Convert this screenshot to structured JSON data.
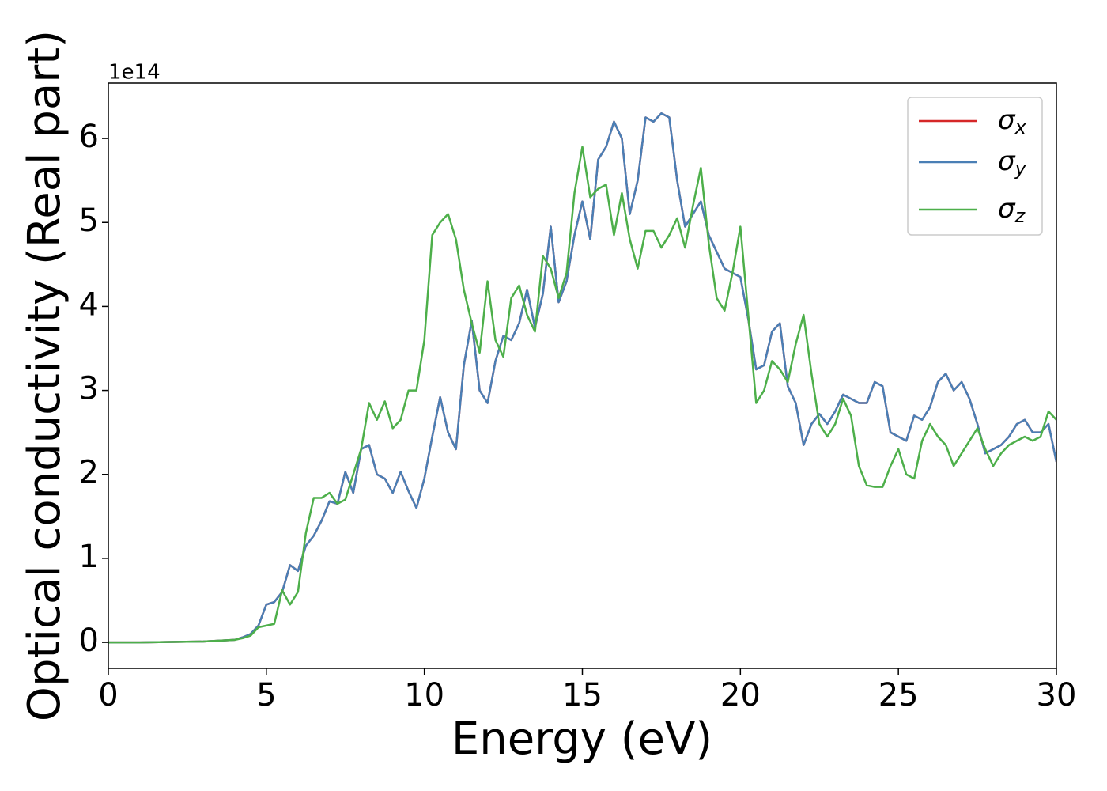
{
  "chart_data": {
    "type": "line",
    "xlabel": "Energy (eV)",
    "ylabel": "Optical conductivity (Real part)",
    "y_offset_text": "1e14",
    "xlim": [
      0,
      30
    ],
    "ylim": [
      -0.31,
      6.66
    ],
    "xticks": [
      0,
      5,
      10,
      15,
      20,
      25,
      30
    ],
    "yticks": [
      0,
      1,
      2,
      3,
      4,
      5,
      6
    ],
    "legend": "upper right",
    "x": [
      0,
      1,
      2,
      3,
      4,
      4.25,
      4.5,
      4.75,
      5,
      5.25,
      5.5,
      5.75,
      6,
      6.25,
      6.5,
      6.75,
      7,
      7.25,
      7.5,
      7.75,
      8,
      8.25,
      8.5,
      8.75,
      9,
      9.25,
      9.5,
      9.75,
      10,
      10.25,
      10.5,
      10.75,
      11,
      11.25,
      11.5,
      11.75,
      12,
      12.25,
      12.5,
      12.75,
      13,
      13.25,
      13.5,
      13.75,
      14,
      14.25,
      14.5,
      14.75,
      15,
      15.25,
      15.5,
      15.75,
      16,
      16.25,
      16.5,
      16.75,
      17,
      17.25,
      17.5,
      17.75,
      18,
      18.25,
      18.5,
      18.75,
      19,
      19.25,
      19.5,
      19.75,
      20,
      20.25,
      20.5,
      20.75,
      21,
      21.25,
      21.5,
      21.75,
      22,
      22.25,
      22.5,
      22.75,
      23,
      23.25,
      23.5,
      23.75,
      24,
      24.25,
      24.5,
      24.75,
      25,
      25.25,
      25.5,
      25.75,
      26,
      26.25,
      26.5,
      26.75,
      27,
      27.25,
      27.5,
      27.75,
      28,
      28.25,
      28.5,
      28.75,
      29,
      29.25,
      29.5,
      29.75,
      30
    ],
    "series": [
      {
        "name": "σx",
        "color": "#d62728",
        "values": [
          0,
          0,
          0.005,
          0.01,
          0.03,
          0.06,
          0.1,
          0.2,
          0.45,
          0.48,
          0.6,
          0.92,
          0.85,
          1.15,
          1.27,
          1.45,
          1.68,
          1.65,
          2.03,
          1.78,
          2.3,
          2.35,
          2.0,
          1.95,
          1.78,
          2.03,
          1.8,
          1.6,
          1.95,
          2.45,
          2.92,
          2.5,
          2.3,
          3.3,
          3.83,
          3.0,
          2.85,
          3.35,
          3.65,
          3.6,
          3.8,
          4.2,
          3.75,
          4.15,
          4.95,
          4.05,
          4.3,
          4.85,
          5.25,
          4.8,
          5.75,
          5.9,
          6.2,
          6.0,
          5.1,
          5.5,
          6.25,
          6.2,
          6.3,
          6.25,
          5.5,
          4.95,
          5.1,
          5.25,
          4.85,
          4.65,
          4.45,
          4.4,
          4.35,
          3.85,
          3.25,
          3.3,
          3.7,
          3.8,
          3.05,
          2.85,
          2.35,
          2.6,
          2.72,
          2.6,
          2.75,
          2.95,
          2.9,
          2.85,
          2.85,
          3.1,
          3.05,
          2.5,
          2.45,
          2.4,
          2.7,
          2.65,
          2.8,
          3.1,
          3.2,
          3.0,
          3.1,
          2.9,
          2.6,
          2.25,
          2.3,
          2.35,
          2.45,
          2.6,
          2.65,
          2.5,
          2.5,
          2.6,
          2.15
        ]
      },
      {
        "name": "σy",
        "color": "#4a7fb5",
        "values": [
          0,
          0,
          0.005,
          0.01,
          0.03,
          0.06,
          0.1,
          0.2,
          0.45,
          0.48,
          0.6,
          0.92,
          0.85,
          1.15,
          1.27,
          1.45,
          1.68,
          1.65,
          2.03,
          1.78,
          2.3,
          2.35,
          2.0,
          1.95,
          1.78,
          2.03,
          1.8,
          1.6,
          1.95,
          2.45,
          2.92,
          2.5,
          2.3,
          3.3,
          3.83,
          3.0,
          2.85,
          3.35,
          3.65,
          3.6,
          3.8,
          4.2,
          3.75,
          4.15,
          4.95,
          4.05,
          4.3,
          4.85,
          5.25,
          4.8,
          5.75,
          5.9,
          6.2,
          6.0,
          5.1,
          5.5,
          6.25,
          6.2,
          6.3,
          6.25,
          5.5,
          4.95,
          5.1,
          5.25,
          4.85,
          4.65,
          4.45,
          4.4,
          4.35,
          3.85,
          3.25,
          3.3,
          3.7,
          3.8,
          3.05,
          2.85,
          2.35,
          2.6,
          2.72,
          2.6,
          2.75,
          2.95,
          2.9,
          2.85,
          2.85,
          3.1,
          3.05,
          2.5,
          2.45,
          2.4,
          2.7,
          2.65,
          2.8,
          3.1,
          3.2,
          3.0,
          3.1,
          2.9,
          2.6,
          2.25,
          2.3,
          2.35,
          2.45,
          2.6,
          2.65,
          2.5,
          2.5,
          2.6,
          2.15
        ]
      },
      {
        "name": "σz",
        "color": "#4daf4a",
        "values": [
          0,
          0,
          0.005,
          0.01,
          0.03,
          0.05,
          0.08,
          0.18,
          0.2,
          0.22,
          0.62,
          0.45,
          0.6,
          1.3,
          1.72,
          1.72,
          1.78,
          1.65,
          1.7,
          2.0,
          2.3,
          2.85,
          2.65,
          2.87,
          2.55,
          2.65,
          3.0,
          3.0,
          3.6,
          4.85,
          5.0,
          5.1,
          4.8,
          4.2,
          3.8,
          3.45,
          4.3,
          3.6,
          3.4,
          4.1,
          4.25,
          3.9,
          3.7,
          4.6,
          4.45,
          4.1,
          4.4,
          5.35,
          5.9,
          5.3,
          5.4,
          5.45,
          4.85,
          5.35,
          4.8,
          4.45,
          4.9,
          4.9,
          4.7,
          4.85,
          5.05,
          4.7,
          5.2,
          5.65,
          4.75,
          4.1,
          3.95,
          4.4,
          4.95,
          3.9,
          2.85,
          3.0,
          3.35,
          3.25,
          3.1,
          3.55,
          3.9,
          3.2,
          2.6,
          2.45,
          2.6,
          2.9,
          2.7,
          2.1,
          1.87,
          1.85,
          1.85,
          2.1,
          2.3,
          2.0,
          1.95,
          2.4,
          2.6,
          2.45,
          2.35,
          2.1,
          2.25,
          2.4,
          2.55,
          2.3,
          2.1,
          2.25,
          2.35,
          2.4,
          2.45,
          2.4,
          2.45,
          2.75,
          2.65
        ]
      }
    ]
  }
}
